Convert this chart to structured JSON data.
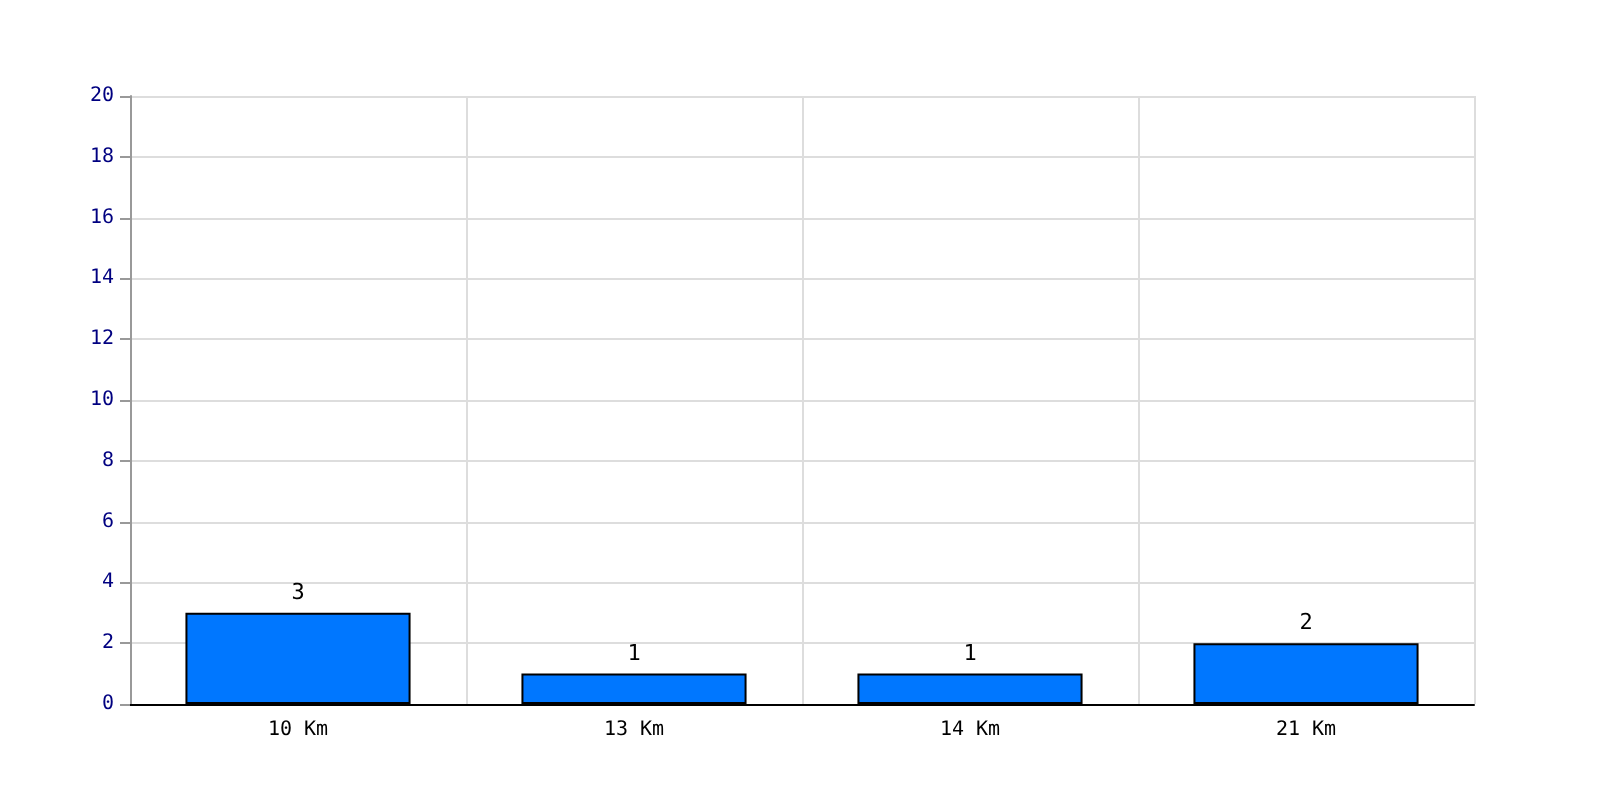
{
  "chart_data": {
    "type": "bar",
    "categories": [
      "10 Km",
      "13 Km",
      "14 Km",
      "21 Km"
    ],
    "values": [
      3,
      1,
      1,
      2
    ],
    "color": "#0077ff",
    "ylim": [
      0,
      20
    ],
    "yticks": [
      0,
      2,
      4,
      6,
      8,
      10,
      12,
      14,
      16,
      18,
      20
    ],
    "grid": true,
    "data_labels": true
  }
}
